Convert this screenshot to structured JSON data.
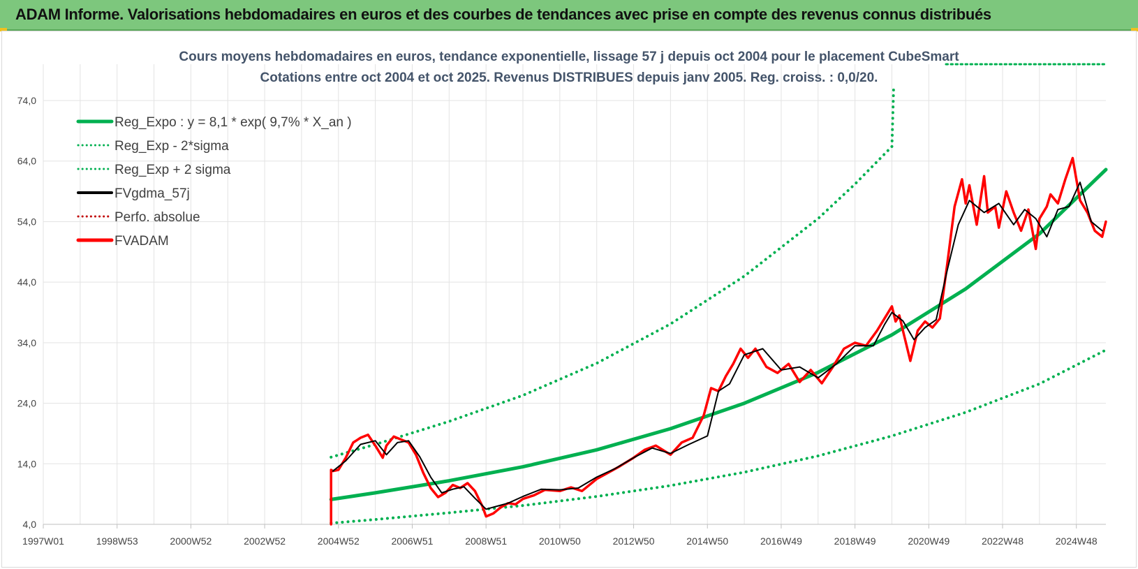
{
  "header": {
    "title": "ADAM Informe. Valorisations hebdomadaires en euros et des courbes de tendances avec prise en compte des revenus connus distribués"
  },
  "colors": {
    "banner": "#7dc77d",
    "green": "#00b050",
    "red": "#ff0000",
    "black": "#000000",
    "darkred": "#c00000",
    "grid": "#e3e3e3"
  },
  "chart_data": {
    "type": "line",
    "title": "Cours moyens hebdomadaires en euros, tendance exponentielle, lissage 57 j depuis oct 2004 pour le placement CubeSmart",
    "subtitle": "Cotations entre oct 2004 et oct 2025. Revenus DISTRIBUES depuis janv 2005. Reg. croiss. : 0,0/20.",
    "xlabel": "",
    "ylabel": "",
    "x_tick_labels": [
      "1997W01",
      "1998W53",
      "2000W52",
      "2002W52",
      "2004W52",
      "2006W51",
      "2008W51",
      "2010W50",
      "2012W50",
      "2014W50",
      "2016W49",
      "2018W49",
      "2020W49",
      "2022W48",
      "2024W48"
    ],
    "xlim": [
      1997.0,
      2025.8
    ],
    "y_tick_labels": [
      "4,0",
      "14,0",
      "24,0",
      "34,0",
      "44,0",
      "54,0",
      "64,0",
      "74,0"
    ],
    "y_ticks": [
      4,
      14,
      24,
      34,
      44,
      54,
      64,
      74
    ],
    "ylim": [
      4,
      80
    ],
    "grid": true,
    "legend_position": "top-left",
    "series": [
      {
        "name": "Reg_Expo : y = 8,1 * exp( 9,7% *  X_an )",
        "style": "solid",
        "color": "#00b050",
        "x": [
          2004.8,
          2006,
          2008,
          2010,
          2012,
          2014,
          2016,
          2018,
          2020,
          2022,
          2024,
          2025.8
        ],
        "values": [
          8.1,
          9.2,
          11.2,
          13.5,
          16.3,
          19.8,
          24.0,
          29.1,
          35.3,
          42.9,
          52.0,
          62.6
        ]
      },
      {
        "name": "Reg_Exp - 2*sigma",
        "style": "dotted",
        "color": "#00b050",
        "x": [
          2004.8,
          2006,
          2008,
          2010,
          2012,
          2014,
          2016,
          2018,
          2020,
          2022,
          2024,
          2025.8
        ],
        "values": [
          4.2,
          4.8,
          5.9,
          7.1,
          8.6,
          10.4,
          12.6,
          15.3,
          18.6,
          22.5,
          27.2,
          32.8
        ]
      },
      {
        "name": "Reg_Exp + 2 sigma",
        "style": "dotted",
        "color": "#00b050",
        "x": [
          2004.8,
          2006,
          2008,
          2010,
          2012,
          2014,
          2016,
          2018,
          2019,
          2020,
          2020.05
        ],
        "values": [
          15.1,
          17.2,
          21.0,
          25.3,
          30.6,
          37.1,
          45.0,
          54.5,
          60.2,
          66.4,
          76.6
        ]
      },
      {
        "name": "FVgdma_57j",
        "style": "solid",
        "color": "#000000",
        "x": [
          2004.85,
          2005.2,
          2005.6,
          2006.0,
          2006.3,
          2006.6,
          2006.9,
          2007.2,
          2007.5,
          2007.8,
          2008.1,
          2008.4,
          2008.7,
          2009.0,
          2009.3,
          2009.6,
          2010.0,
          2010.5,
          2011.0,
          2011.5,
          2012.0,
          2012.5,
          2013.0,
          2013.5,
          2014.0,
          2014.5,
          2015.0,
          2015.3,
          2015.6,
          2016.0,
          2016.5,
          2017.0,
          2017.5,
          2018.0,
          2018.5,
          2019.0,
          2019.5,
          2019.8,
          2020.0,
          2020.3,
          2020.6,
          2020.9,
          2021.2,
          2021.5,
          2021.8,
          2022.1,
          2022.5,
          2022.9,
          2023.3,
          2023.6,
          2023.9,
          2024.2,
          2024.5,
          2024.8,
          2025.1,
          2025.4,
          2025.7
        ],
        "values": [
          12.8,
          14.5,
          17.2,
          17.8,
          15.5,
          17.5,
          17.8,
          15.2,
          11.8,
          9.2,
          9.8,
          10.2,
          8.3,
          6.5,
          7.0,
          7.5,
          8.6,
          9.8,
          9.7,
          10.0,
          11.8,
          13.2,
          15.0,
          16.6,
          15.7,
          17.2,
          18.6,
          26.0,
          27.2,
          32.0,
          33.0,
          29.5,
          30.0,
          28.2,
          30.5,
          33.5,
          33.5,
          37.0,
          39.0,
          37.6,
          34.5,
          36.5,
          37.8,
          46.0,
          53.5,
          57.5,
          55.5,
          57.0,
          53.5,
          56.0,
          54.5,
          51.5,
          56.0,
          56.5,
          60.5,
          54.0,
          52.5
        ]
      },
      {
        "name": "Perfo. absolue",
        "style": "dotted",
        "color": "#c00000",
        "x": [],
        "values": []
      },
      {
        "name": "FVADAM",
        "style": "solid",
        "color": "#ff0000",
        "x": [
          2004.8,
          2004.8,
          2004.85,
          2005.0,
          2005.2,
          2005.4,
          2005.6,
          2005.8,
          2006.0,
          2006.2,
          2006.3,
          2006.5,
          2006.7,
          2006.9,
          2007.1,
          2007.3,
          2007.5,
          2007.7,
          2007.9,
          2008.1,
          2008.3,
          2008.5,
          2008.7,
          2008.9,
          2009.0,
          2009.2,
          2009.4,
          2009.6,
          2009.8,
          2010.0,
          2010.3,
          2010.6,
          2011.0,
          2011.3,
          2011.6,
          2012.0,
          2012.3,
          2012.6,
          2013.0,
          2013.3,
          2013.6,
          2014.0,
          2014.3,
          2014.6,
          2014.9,
          2015.1,
          2015.3,
          2015.5,
          2015.7,
          2015.9,
          2016.1,
          2016.3,
          2016.6,
          2016.9,
          2017.2,
          2017.5,
          2017.8,
          2018.1,
          2018.4,
          2018.7,
          2019.0,
          2019.3,
          2019.6,
          2019.8,
          2020.0,
          2020.1,
          2020.2,
          2020.3,
          2020.5,
          2020.7,
          2020.9,
          2021.1,
          2021.3,
          2021.5,
          2021.7,
          2021.9,
          2022.0,
          2022.1,
          2022.3,
          2022.5,
          2022.6,
          2022.8,
          2022.9,
          2023.1,
          2023.3,
          2023.5,
          2023.7,
          2023.9,
          2024.0,
          2024.2,
          2024.3,
          2024.5,
          2024.7,
          2024.9,
          2025.1,
          2025.3,
          2025.5,
          2025.7,
          2025.8
        ],
        "values": [
          4.0,
          13.0,
          12.8,
          13.0,
          15.0,
          17.5,
          18.3,
          18.8,
          17.0,
          15.0,
          17.0,
          18.5,
          18.0,
          17.5,
          15.5,
          12.5,
          10.0,
          8.5,
          9.2,
          10.5,
          10.0,
          10.8,
          9.5,
          7.0,
          5.3,
          5.8,
          6.8,
          7.5,
          7.3,
          8.2,
          8.8,
          9.7,
          9.5,
          10.1,
          9.5,
          11.5,
          12.5,
          13.5,
          15.0,
          16.3,
          17.0,
          15.5,
          17.5,
          18.3,
          22.0,
          26.5,
          26.0,
          28.5,
          30.5,
          33.0,
          31.5,
          33.0,
          30.0,
          29.0,
          30.5,
          27.5,
          29.5,
          27.3,
          30.0,
          33.0,
          34.0,
          33.5,
          36.0,
          38.0,
          40.0,
          37.5,
          38.5,
          36.0,
          31.0,
          36.0,
          37.5,
          36.5,
          38.0,
          47.0,
          56.5,
          61.0,
          57.0,
          60.0,
          53.5,
          61.5,
          55.5,
          56.5,
          53.0,
          59.0,
          55.5,
          52.5,
          56.0,
          49.5,
          54.5,
          56.5,
          58.5,
          57.0,
          61.0,
          64.5,
          57.5,
          55.5,
          52.5,
          51.5,
          54.0
        ]
      }
    ]
  }
}
